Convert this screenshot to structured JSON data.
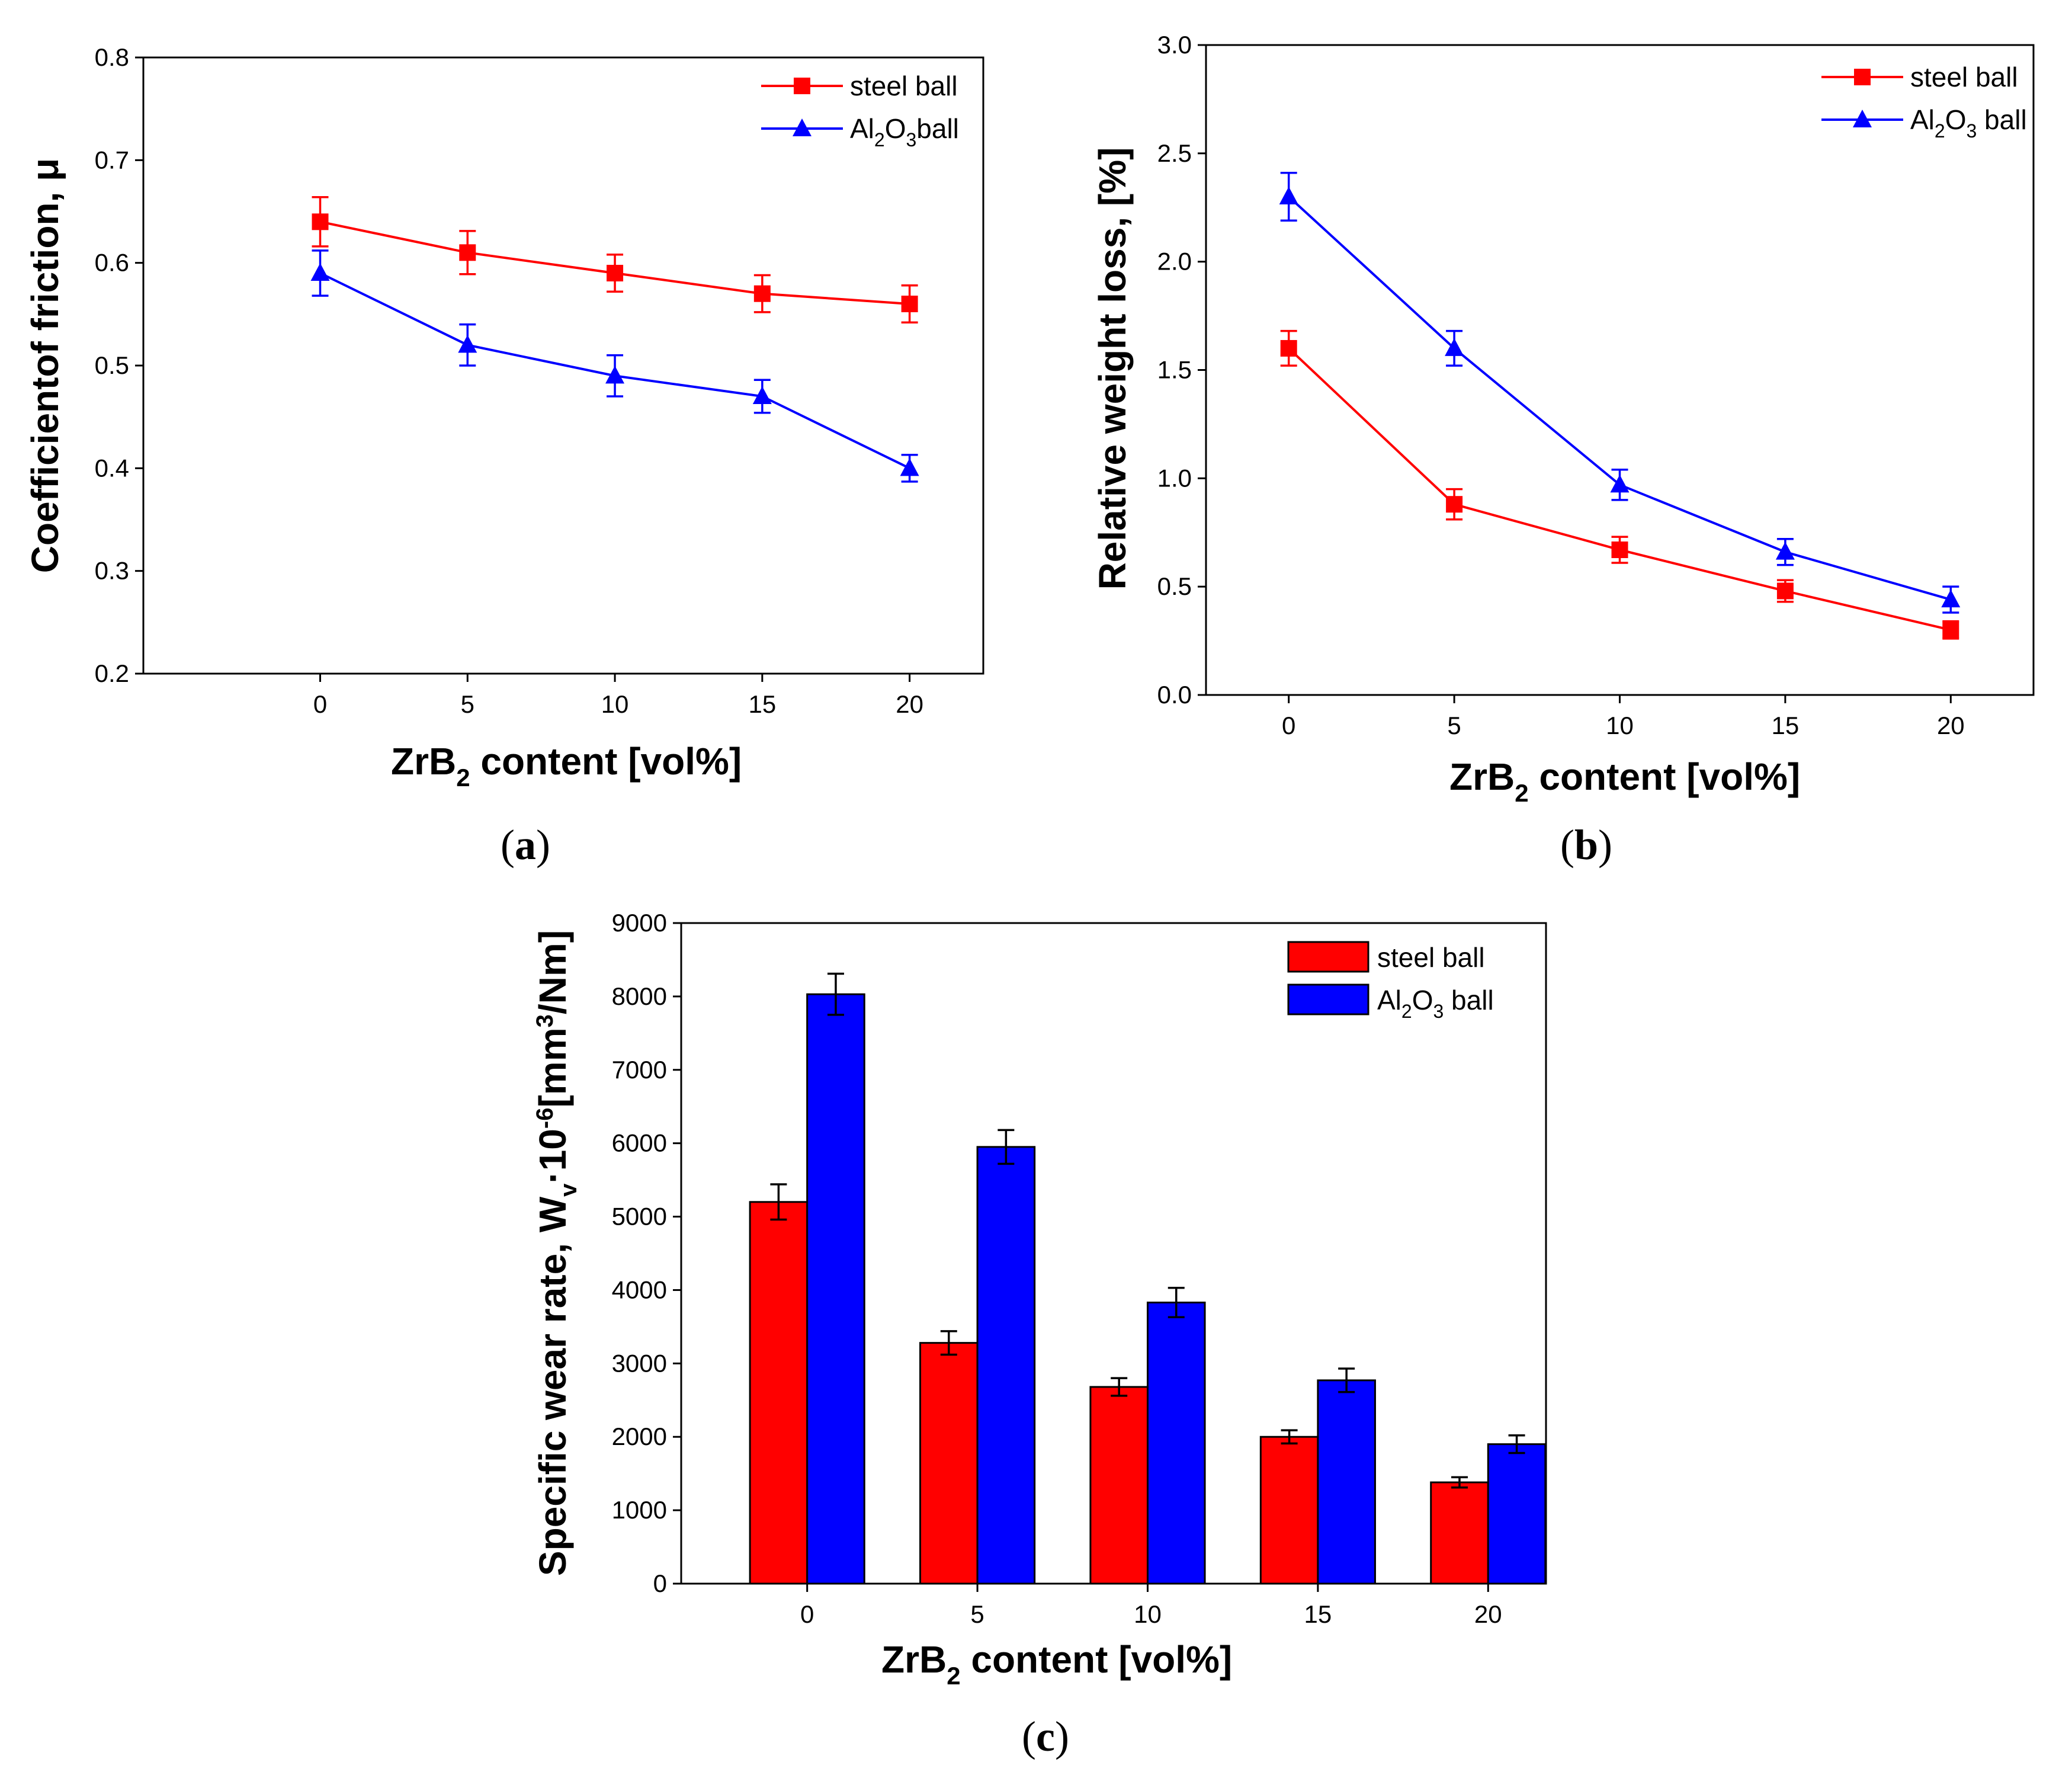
{
  "colors": {
    "steel": "#ff0000",
    "al2o3": "#0000ff",
    "axis": "#000000"
  },
  "chart_data": [
    {
      "id": "a",
      "panel_label": "a",
      "type": "line",
      "xlabel": {
        "main": "ZrB",
        "sub": "2",
        "rest": " content [vol%]"
      },
      "ylabel": "Coefficientof friction, μ",
      "x": [
        0,
        5,
        10,
        15,
        20
      ],
      "xlim": [
        -6,
        22.5
      ],
      "ylim": [
        0.2,
        0.8
      ],
      "yticks": [
        0.2,
        0.3,
        0.4,
        0.5,
        0.6,
        0.7,
        0.8
      ],
      "ytick_labels": [
        "0.2",
        "0.3",
        "0.4",
        "0.5",
        "0.6",
        "0.7",
        "0.8"
      ],
      "xtick_labels": [
        "0",
        "5",
        "10",
        "15",
        "20"
      ],
      "legend_position": "top-right",
      "series": [
        {
          "name": "steel ball",
          "key": "steel",
          "marker": "square",
          "label_parts": [
            "steel ball"
          ],
          "values": [
            0.64,
            0.61,
            0.59,
            0.57,
            0.56
          ],
          "errors": [
            0.024,
            0.021,
            0.018,
            0.018,
            0.018
          ]
        },
        {
          "name": "Al2O3ball",
          "key": "al2o3",
          "marker": "triangle",
          "label_parts": [
            "Al",
            "2",
            "O",
            "3",
            "ball"
          ],
          "values": [
            0.59,
            0.52,
            0.49,
            0.47,
            0.4
          ],
          "errors": [
            0.022,
            0.02,
            0.02,
            0.016,
            0.013
          ]
        }
      ]
    },
    {
      "id": "b",
      "panel_label": "b",
      "type": "line",
      "xlabel": {
        "main": "ZrB",
        "sub": "2",
        "rest": " content [vol%]"
      },
      "ylabel": "Relative weight loss, [%]",
      "x": [
        0,
        5,
        10,
        15,
        20
      ],
      "xlim": [
        -2.5,
        22.5
      ],
      "ylim": [
        0.0,
        3.0
      ],
      "yticks": [
        0.0,
        0.5,
        1.0,
        1.5,
        2.0,
        2.5,
        3.0
      ],
      "ytick_labels": [
        "0.0",
        "0.5",
        "1.0",
        "1.5",
        "2.0",
        "2.5",
        "3.0"
      ],
      "xtick_labels": [
        "0",
        "5",
        "10",
        "15",
        "20"
      ],
      "legend_position": "top-right",
      "series": [
        {
          "name": "steel ball",
          "key": "steel",
          "marker": "square",
          "label_parts": [
            "steel ball"
          ],
          "values": [
            1.6,
            0.88,
            0.67,
            0.48,
            0.3
          ],
          "errors": [
            0.08,
            0.07,
            0.06,
            0.05,
            0.04
          ]
        },
        {
          "name": "Al2O3 ball",
          "key": "al2o3",
          "marker": "triangle",
          "label_parts": [
            "Al",
            "2",
            "O",
            "3",
            " ball"
          ],
          "values": [
            2.3,
            1.6,
            0.97,
            0.66,
            0.44
          ],
          "errors": [
            0.11,
            0.08,
            0.07,
            0.06,
            0.06
          ]
        }
      ]
    },
    {
      "id": "c",
      "panel_label": "c",
      "type": "bar",
      "xlabel": {
        "main": "ZrB",
        "sub": "2",
        "rest": " content [vol%]"
      },
      "ylabel": {
        "pre": "Specific wear rate, W",
        "sub": "v",
        "mid": "·10",
        "sup1": "-6",
        "mid2": "[mm",
        "sup2": "3",
        "post": "/Nm]"
      },
      "categories": [
        "0",
        "5",
        "10",
        "15",
        "20"
      ],
      "xlim": [
        -1.35,
        11.35
      ],
      "ylim": [
        0,
        9000
      ],
      "yticks": [
        0,
        1000,
        2000,
        3000,
        4000,
        5000,
        6000,
        7000,
        8000,
        9000
      ],
      "ytick_labels": [
        "0",
        "1000",
        "2000",
        "3000",
        "4000",
        "5000",
        "6000",
        "7000",
        "8000",
        "9000"
      ],
      "legend_position": "top-right",
      "series": [
        {
          "name": "steel ball",
          "key": "steel",
          "label_parts": [
            "steel ball"
          ],
          "values": [
            5200,
            3280,
            2680,
            2000,
            1380
          ],
          "errors": [
            240,
            160,
            120,
            90,
            70
          ]
        },
        {
          "name": "Al2O3 ball",
          "key": "al2o3",
          "label_parts": [
            "Al",
            "2",
            "O",
            "3",
            " ball"
          ],
          "values": [
            8030,
            5950,
            3830,
            2770,
            1900
          ],
          "errors": [
            280,
            230,
            200,
            160,
            120
          ]
        }
      ]
    }
  ]
}
